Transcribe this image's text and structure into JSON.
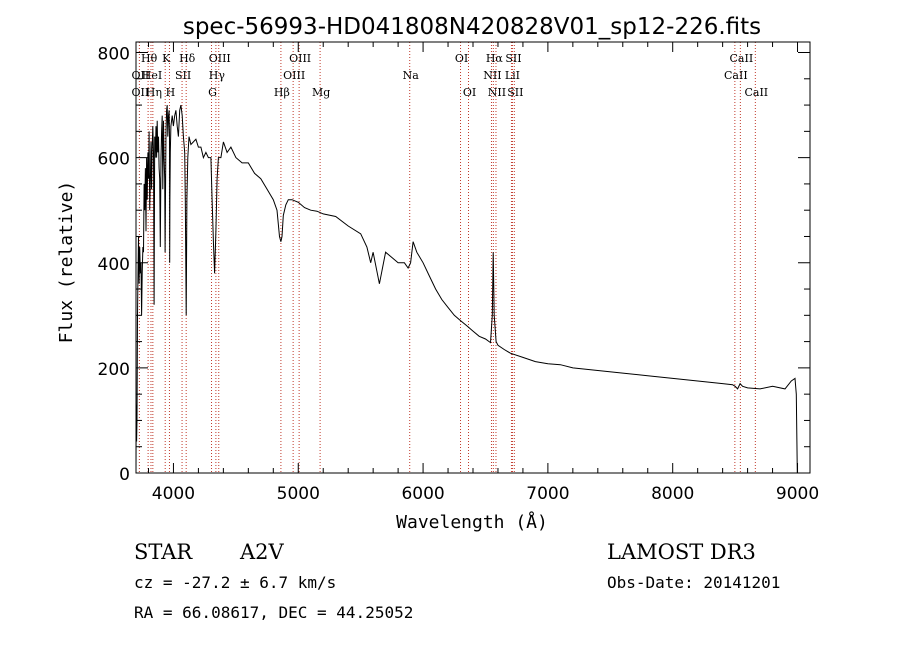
{
  "chart_data": {
    "type": "line",
    "title": "spec-56993-HD041808N420828V01_sp12-226.fits",
    "xlabel": "Wavelength (Å)",
    "ylabel": "Flux (relative)",
    "xlim": [
      3700,
      9100
    ],
    "ylim": [
      0,
      820
    ],
    "x_ticks": [
      4000,
      5000,
      6000,
      7000,
      8000,
      9000
    ],
    "y_ticks": [
      0,
      200,
      400,
      600,
      800
    ],
    "series": [
      {
        "name": "flux",
        "x": [
          3700,
          3702,
          3705,
          3708,
          3712,
          3716,
          3720,
          3725,
          3730,
          3735,
          3740,
          3745,
          3750,
          3755,
          3760,
          3765,
          3770,
          3775,
          3780,
          3785,
          3790,
          3795,
          3800,
          3805,
          3810,
          3815,
          3820,
          3825,
          3830,
          3835,
          3840,
          3845,
          3850,
          3855,
          3860,
          3865,
          3870,
          3875,
          3880,
          3885,
          3890,
          3895,
          3900,
          3905,
          3910,
          3915,
          3920,
          3925,
          3930,
          3933,
          3936,
          3940,
          3945,
          3950,
          3955,
          3960,
          3965,
          3968,
          3970,
          3972,
          3975,
          3980,
          3990,
          4000,
          4010,
          4020,
          4030,
          4040,
          4050,
          4060,
          4070,
          4080,
          4090,
          4095,
          4102,
          4108,
          4115,
          4125,
          4140,
          4160,
          4180,
          4200,
          4220,
          4240,
          4260,
          4280,
          4300,
          4310,
          4320,
          4330,
          4340,
          4350,
          4360,
          4380,
          4400,
          4430,
          4460,
          4500,
          4550,
          4600,
          4650,
          4700,
          4750,
          4800,
          4830,
          4850,
          4861,
          4870,
          4880,
          4900,
          4920,
          4950,
          5000,
          5050,
          5100,
          5150,
          5200,
          5300,
          5400,
          5500,
          5550,
          5580,
          5600,
          5650,
          5700,
          5750,
          5800,
          5850,
          5880,
          5900,
          5920,
          5950,
          6000,
          6050,
          6100,
          6150,
          6200,
          6250,
          6300,
          6350,
          6400,
          6450,
          6500,
          6540,
          6555,
          6562,
          6570,
          6585,
          6600,
          6650,
          6700,
          6800,
          6900,
          7000,
          7100,
          7200,
          7400,
          7600,
          7800,
          8000,
          8200,
          8400,
          8480,
          8500,
          8520,
          8540,
          8560,
          8600,
          8700,
          8800,
          8900,
          8950,
          8980,
          8990,
          8995,
          8998
        ],
        "values": [
          0,
          130,
          60,
          100,
          300,
          380,
          450,
          360,
          430,
          380,
          400,
          300,
          380,
          430,
          420,
          550,
          500,
          580,
          460,
          600,
          520,
          610,
          560,
          650,
          500,
          560,
          630,
          540,
          620,
          660,
          610,
          320,
          640,
          600,
          660,
          600,
          670,
          610,
          640,
          580,
          560,
          430,
          600,
          650,
          680,
          540,
          670,
          600,
          560,
          420,
          530,
          650,
          690,
          700,
          640,
          680,
          690,
          640,
          400,
          520,
          610,
          660,
          680,
          660,
          680,
          690,
          660,
          640,
          690,
          700,
          680,
          640,
          610,
          520,
          300,
          520,
          600,
          640,
          625,
          630,
          635,
          620,
          620,
          600,
          610,
          600,
          600,
          520,
          440,
          380,
          460,
          560,
          600,
          600,
          630,
          610,
          620,
          600,
          590,
          590,
          570,
          560,
          540,
          520,
          500,
          450,
          440,
          450,
          490,
          510,
          520,
          520,
          515,
          505,
          500,
          498,
          493,
          488,
          470,
          455,
          430,
          400,
          420,
          360,
          420,
          410,
          400,
          400,
          390,
          400,
          440,
          420,
          400,
          375,
          350,
          330,
          315,
          300,
          290,
          280,
          270,
          260,
          255,
          248,
          300,
          420,
          300,
          250,
          243,
          235,
          228,
          220,
          212,
          208,
          206,
          200,
          195,
          190,
          185,
          180,
          175,
          170,
          168,
          165,
          160,
          170,
          165,
          162,
          160,
          165,
          160,
          175,
          180,
          150,
          60,
          0
        ]
      }
    ],
    "annotations": [
      {
        "label": "Hθ",
        "x": 3797,
        "row": 0
      },
      {
        "label": "OII",
        "x": 3727,
        "row": 1
      },
      {
        "label": "OII",
        "x": 3727,
        "row": 2
      },
      {
        "label": "Hη",
        "x": 3835,
        "row": 2
      },
      {
        "label": "HeI",
        "x": 3820,
        "row": 1
      },
      {
        "label": "K",
        "x": 3934,
        "row": 0
      },
      {
        "label": "SII",
        "x": 4069,
        "row": 1
      },
      {
        "label": "H",
        "x": 3968,
        "row": 2
      },
      {
        "label": "Hδ",
        "x": 4102,
        "row": 0
      },
      {
        "label": "OIII",
        "x": 4363,
        "row": 0
      },
      {
        "label": "Hγ",
        "x": 4340,
        "row": 1
      },
      {
        "label": "G",
        "x": 4305,
        "row": 2
      },
      {
        "label": "OIII",
        "x": 5007,
        "row": 0
      },
      {
        "label": "OIII",
        "x": 4959,
        "row": 1
      },
      {
        "label": "Hβ",
        "x": 4861,
        "row": 2
      },
      {
        "label": "Mg",
        "x": 5175,
        "row": 2
      },
      {
        "label": "Na",
        "x": 5893,
        "row": 1
      },
      {
        "label": "OI",
        "x": 6300,
        "row": 0
      },
      {
        "label": "OI",
        "x": 6364,
        "row": 2
      },
      {
        "label": "Hα",
        "x": 6563,
        "row": 0
      },
      {
        "label": "SII",
        "x": 6716,
        "row": 0
      },
      {
        "label": "NII",
        "x": 6548,
        "row": 1
      },
      {
        "label": "LiI",
        "x": 6708,
        "row": 1
      },
      {
        "label": "NII",
        "x": 6584,
        "row": 2
      },
      {
        "label": "SII",
        "x": 6731,
        "row": 2
      },
      {
        "label": "CaII",
        "x": 8542,
        "row": 0
      },
      {
        "label": "CaII",
        "x": 8498,
        "row": 1
      },
      {
        "label": "CaII",
        "x": 8662,
        "row": 2
      }
    ]
  },
  "info": {
    "class": "STAR",
    "subclass": "A2V",
    "survey": "LAMOST DR3",
    "cz": "cz = -27.2 ± 6.7 km/s",
    "obs_date": "Obs-Date: 20141201",
    "radec": "RA =  66.08617, DEC =  44.25052"
  }
}
